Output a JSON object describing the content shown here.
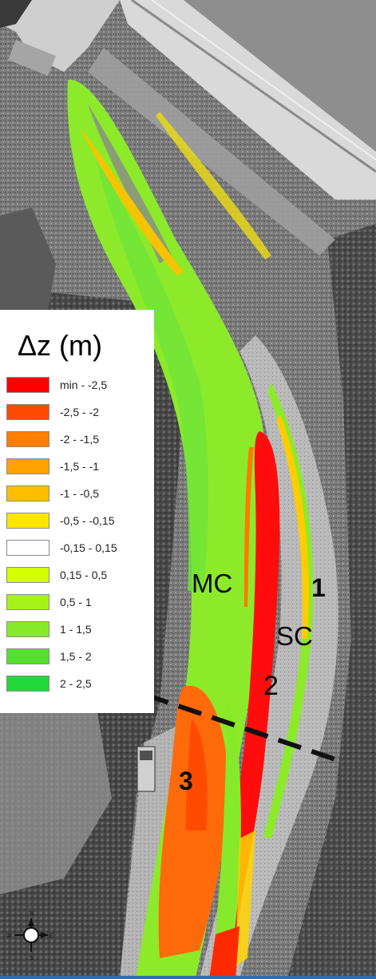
{
  "legend": {
    "title": "Δz (m)",
    "classes": [
      {
        "label": "min - -2,5",
        "color": "#ff0000"
      },
      {
        "label": "-2,5 - -2",
        "color": "#ff4a00"
      },
      {
        "label": "-2 - -1,5",
        "color": "#ff7e00"
      },
      {
        "label": "-1,5 - -1",
        "color": "#ffa200"
      },
      {
        "label": "-1 - -0,5",
        "color": "#ffbf00"
      },
      {
        "label": "-0,5 - -0,15",
        "color": "#ffe600"
      },
      {
        "label": "-0,15 - 0,15",
        "color": "#ffffff"
      },
      {
        "label": "0,15 - 0,5",
        "color": "#d4ff00"
      },
      {
        "label": "0,5 - 1",
        "color": "#a8f21c"
      },
      {
        "label": "1 - 1,5",
        "color": "#86ea2a"
      },
      {
        "label": "1,5 - 2",
        "color": "#55e030"
      },
      {
        "label": "2 - 2,5",
        "color": "#22d83a"
      }
    ]
  },
  "map_labels": {
    "main_channel": "MC",
    "side_channel": "SC",
    "zone_1": "1",
    "zone_2": "2",
    "zone_3": "3"
  },
  "compass": {
    "north": "N",
    "south": "S",
    "east": "E",
    "west": "W"
  },
  "colors": {
    "accent_bar": "#2e6fb3"
  }
}
